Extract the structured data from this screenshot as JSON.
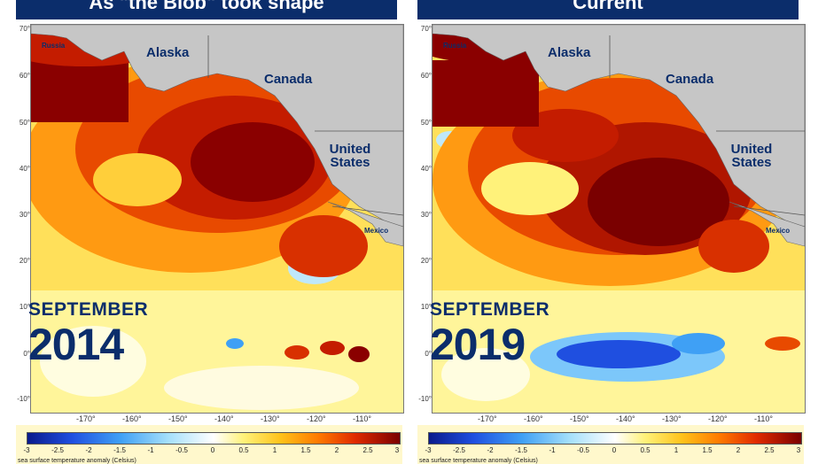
{
  "panels": [
    {
      "title": "As \"the Blob\" took shape",
      "month": "SEPTEMBER",
      "year": "2014"
    },
    {
      "title": "Current",
      "month": "SEPTEMBER",
      "year": "2019"
    }
  ],
  "places": {
    "russia": "Russia",
    "alaska": "Alaska",
    "canada": "Canada",
    "united_states": "United States",
    "mexico": "Mexico"
  },
  "lat_ticks": [
    "70°",
    "60°",
    "50°",
    "40°",
    "30°",
    "20°",
    "10°",
    "0°",
    "-10°"
  ],
  "lon_ticks": [
    "-170°",
    "-160°",
    "-150°",
    "-140°",
    "-130°",
    "-120°",
    "-110°"
  ],
  "legend": {
    "ticks": [
      "-3",
      "-2.5",
      "-2",
      "-1.5",
      "-1",
      "-0.5",
      "0",
      "0.5",
      "1",
      "1.5",
      "2",
      "2.5",
      "3"
    ],
    "caption": "sea surface temperature anomaly (Celsius)",
    "colors": [
      "#0a1a8c",
      "#1f4fe0",
      "#3fa0f5",
      "#a6e0fb",
      "#ffffff",
      "#fff27a",
      "#ffc21a",
      "#ff7a00",
      "#e02a00",
      "#7a0000"
    ]
  },
  "colors": {
    "banner": "#0b2d6b",
    "land": "#c6c6c6",
    "label_text": "#0b2d6b"
  }
}
